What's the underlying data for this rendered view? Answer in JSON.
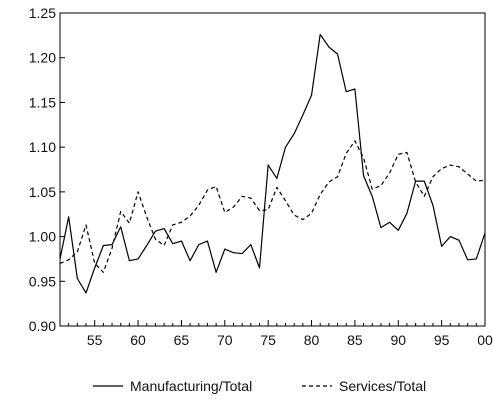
{
  "chart_data": {
    "type": "line",
    "title": "",
    "xlabel": "",
    "ylabel": "",
    "xlim": [
      1951,
      2000
    ],
    "ylim": [
      0.9,
      1.25
    ],
    "grid": false,
    "legend_position": "bottom",
    "x_ticks": [
      {
        "value": 1955,
        "label": "55"
      },
      {
        "value": 1960,
        "label": "60"
      },
      {
        "value": 1965,
        "label": "65"
      },
      {
        "value": 1970,
        "label": "70"
      },
      {
        "value": 1975,
        "label": "75"
      },
      {
        "value": 1980,
        "label": "80"
      },
      {
        "value": 1985,
        "label": "85"
      },
      {
        "value": 1990,
        "label": "90"
      },
      {
        "value": 1995,
        "label": "95"
      },
      {
        "value": 2000,
        "label": "00"
      }
    ],
    "y_ticks": [
      {
        "value": 0.9,
        "label": "0.90"
      },
      {
        "value": 0.95,
        "label": "0.95"
      },
      {
        "value": 1.0,
        "label": "1.00"
      },
      {
        "value": 1.05,
        "label": "1.05"
      },
      {
        "value": 1.1,
        "label": "1.10"
      },
      {
        "value": 1.15,
        "label": "1.15"
      },
      {
        "value": 1.2,
        "label": "1.20"
      },
      {
        "value": 1.25,
        "label": "1.25"
      }
    ],
    "x": [
      1951,
      1952,
      1953,
      1954,
      1955,
      1956,
      1957,
      1958,
      1959,
      1960,
      1961,
      1962,
      1963,
      1964,
      1965,
      1966,
      1967,
      1968,
      1969,
      1970,
      1971,
      1972,
      1973,
      1974,
      1975,
      1976,
      1977,
      1978,
      1979,
      1980,
      1981,
      1982,
      1983,
      1984,
      1985,
      1986,
      1987,
      1988,
      1989,
      1990,
      1991,
      1992,
      1993,
      1994,
      1995,
      1996,
      1997,
      1998,
      1999,
      2000
    ],
    "series": [
      {
        "name": "Manufacturing/Total",
        "style": "solid",
        "color": "#000000",
        "values": [
          0.975,
          1.022,
          0.953,
          0.937,
          0.965,
          0.99,
          0.991,
          1.011,
          0.973,
          0.975,
          0.99,
          1.006,
          1.009,
          0.992,
          0.995,
          0.973,
          0.991,
          0.995,
          0.96,
          0.986,
          0.982,
          0.981,
          0.991,
          0.965,
          1.08,
          1.065,
          1.1,
          1.115,
          1.136,
          1.158,
          1.226,
          1.212,
          1.204,
          1.162,
          1.165,
          1.068,
          1.045,
          1.01,
          1.016,
          1.007,
          1.026,
          1.062,
          1.062,
          1.035,
          0.989,
          1.0,
          0.996,
          0.974,
          0.975,
          1.004
        ]
      },
      {
        "name": "Services/Total",
        "style": "dashed",
        "color": "#000000",
        "values": [
          0.97,
          0.974,
          0.983,
          1.013,
          0.97,
          0.96,
          0.987,
          1.028,
          1.015,
          1.05,
          1.022,
          0.997,
          0.99,
          1.013,
          1.016,
          1.023,
          1.035,
          1.052,
          1.056,
          1.027,
          1.033,
          1.045,
          1.043,
          1.029,
          1.03,
          1.055,
          1.04,
          1.024,
          1.019,
          1.026,
          1.047,
          1.061,
          1.067,
          1.093,
          1.107,
          1.088,
          1.053,
          1.057,
          1.071,
          1.092,
          1.094,
          1.061,
          1.045,
          1.067,
          1.076,
          1.08,
          1.078,
          1.07,
          1.062,
          1.063
        ]
      }
    ]
  }
}
